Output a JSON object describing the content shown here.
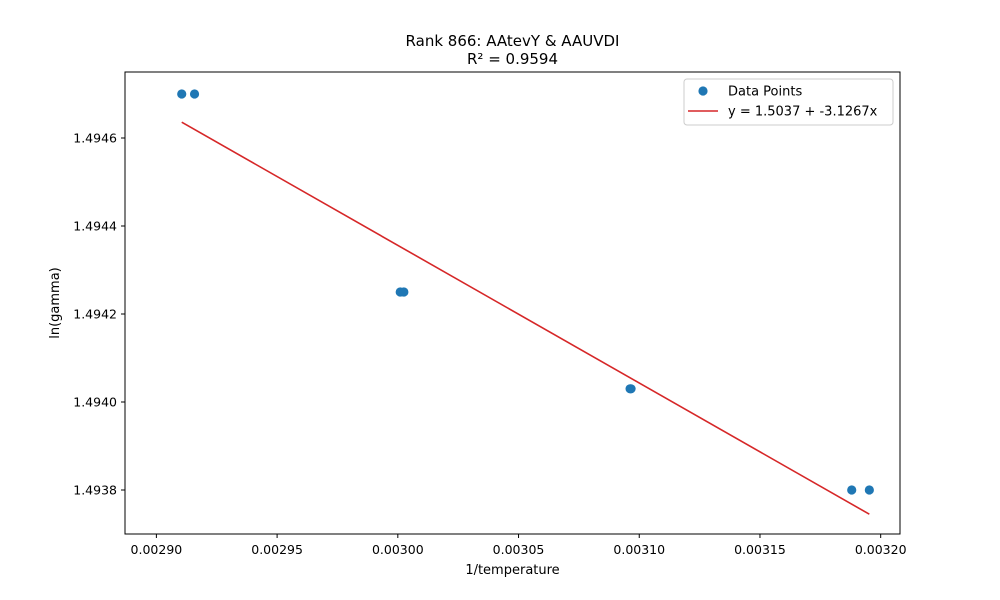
{
  "chart_data": {
    "type": "scatter",
    "title": "Rank 866: AAtevY & AAUVDI",
    "subtitle": "R² = 0.9594",
    "xlabel": "1/temperature",
    "ylabel": "ln(gamma)",
    "xlim": [
      0.002887,
      0.003208
    ],
    "ylim": [
      1.4937,
      1.49475
    ],
    "xticks": [
      0.0029,
      0.00295,
      0.003,
      0.00305,
      0.0031,
      0.00315,
      0.0032
    ],
    "xtick_labels": [
      "0.00290",
      "0.00295",
      "0.00300",
      "0.00305",
      "0.00310",
      "0.00315",
      "0.00320"
    ],
    "yticks": [
      1.4938,
      1.494,
      1.4942,
      1.4944,
      1.4946
    ],
    "ytick_labels": [
      "1.4938",
      "1.4940",
      "1.4942",
      "1.4944",
      "1.4946"
    ],
    "grid": false,
    "legend_position": "top-right",
    "series": [
      {
        "name": "Data Points",
        "kind": "scatter",
        "color": "#1f77b4",
        "x": [
          0.0029105,
          0.0029158,
          0.003001,
          0.0030025,
          0.0030962,
          0.0030966,
          0.003188,
          0.0031953
        ],
        "y": [
          1.4947,
          1.4947,
          1.49425,
          1.49425,
          1.49403,
          1.49403,
          1.4938,
          1.4938
        ]
      },
      {
        "name": "y = 1.5037 + -3.1267x",
        "kind": "line",
        "color": "#d62728",
        "x": [
          0.0029105,
          0.0031953
        ],
        "y": [
          1.494636,
          1.493745
        ]
      }
    ]
  }
}
